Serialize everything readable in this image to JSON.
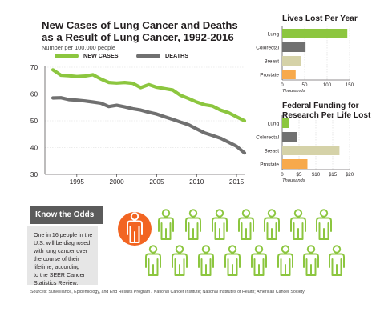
{
  "title": "New Cases of Lung Cancer and Deaths\nas a Result of Lung Cancer, 1992-2016",
  "subtitle": "Number per 100,000 people",
  "colors": {
    "green": "#8cc63f",
    "gray": "#707070",
    "tan": "#d5d2a8",
    "orange": "#f7a94b",
    "accent_orange": "#f26522"
  },
  "chart_data": [
    {
      "type": "line",
      "ylim": [
        30,
        70
      ],
      "xlim": [
        1991,
        2016
      ],
      "yticks": [
        "30",
        "40",
        "50",
        "60",
        "70"
      ],
      "xticks": [
        "1995",
        "2000",
        "2005",
        "2010",
        "2015"
      ],
      "legend": "top",
      "series": [
        {
          "name": "NEW CASES",
          "x": [
            1992,
            1993,
            1994,
            1995,
            1996,
            1997,
            1998,
            1999,
            2000,
            2001,
            2002,
            2003,
            2004,
            2005,
            2006,
            2007,
            2008,
            2009,
            2010,
            2011,
            2012,
            2013,
            2014,
            2015,
            2016
          ],
          "values": [
            69.0,
            67.0,
            66.8,
            66.5,
            66.7,
            67.2,
            65.6,
            64.3,
            64.1,
            64.3,
            64.0,
            62.4,
            63.5,
            62.5,
            62.0,
            61.5,
            59.5,
            58.3,
            57.0,
            56.0,
            55.5,
            54.0,
            53.0,
            51.5,
            50.0
          ]
        },
        {
          "name": "DEATHS",
          "x": [
            1992,
            1993,
            1994,
            1995,
            1996,
            1997,
            1998,
            1999,
            2000,
            2001,
            2002,
            2003,
            2004,
            2005,
            2006,
            2007,
            2008,
            2009,
            2010,
            2011,
            2012,
            2013,
            2014,
            2015,
            2016
          ],
          "values": [
            58.5,
            58.6,
            57.9,
            57.7,
            57.4,
            57.0,
            56.6,
            55.3,
            55.8,
            55.2,
            54.5,
            54.0,
            53.2,
            52.5,
            51.5,
            50.5,
            49.5,
            48.5,
            47.0,
            45.5,
            44.5,
            43.5,
            42.0,
            40.5,
            38.0
          ]
        }
      ]
    },
    {
      "type": "bar",
      "title": "Lives Lost Per Year",
      "categories": [
        "Lung",
        "Colorectal",
        "Breast",
        "Prostate"
      ],
      "values": [
        145,
        52,
        42,
        30
      ],
      "xlim": [
        0,
        150
      ],
      "xticks": [
        "0",
        "50",
        "100",
        "150"
      ],
      "xlabel": "Thousands"
    },
    {
      "type": "bar",
      "title": "Federal Funding for\nResearch Per Life Lost",
      "categories": [
        "Lung",
        "Colorectal",
        "Breast",
        "Prostate"
      ],
      "values": [
        2.0,
        4.5,
        17.0,
        7.5
      ],
      "xlim": [
        0,
        20
      ],
      "xticks": [
        "0",
        "$5",
        "$10",
        "$15",
        "$20"
      ],
      "xlabel": "Thousands"
    }
  ],
  "know_the_odds": {
    "heading": "Know the Odds",
    "text": "One in 16 people in the\nU.S. will be diagnosed\nwith lung cancer over\nthe course of their\nlifetime, according\nto the SEER Cancer\nStatistics Review.",
    "people_total": 16,
    "people_highlighted": 1
  },
  "sources": "Sources: Surveillance, Epidemiology, and End Results Program / National Cancer Institute; National Institutes of Health; American Cancer Society"
}
